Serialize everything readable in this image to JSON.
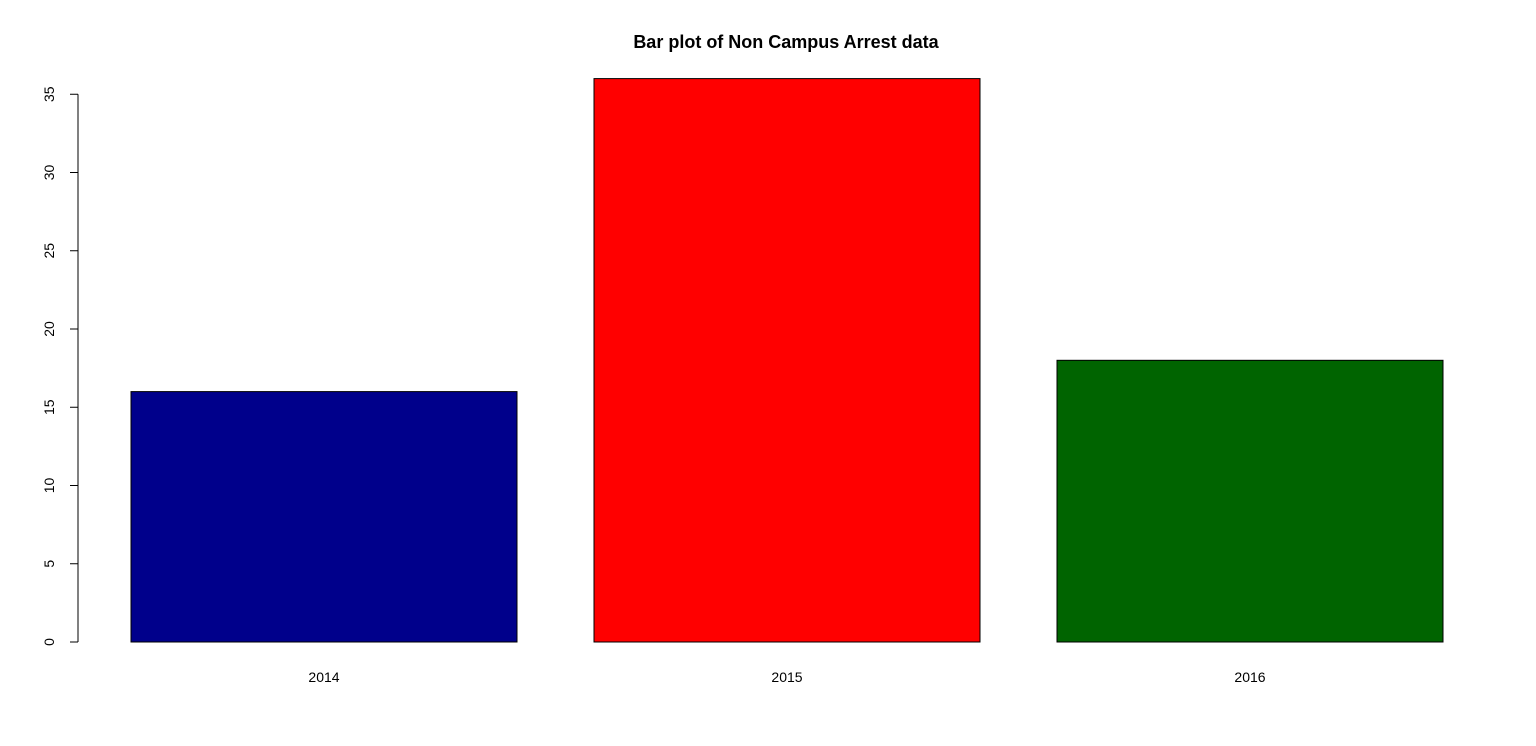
{
  "chart_data": {
    "type": "bar",
    "title": "Bar plot of Non Campus Arrest data",
    "categories": [
      "2014",
      "2015",
      "2016"
    ],
    "values": [
      16,
      36,
      18
    ],
    "colors": [
      "#00008B",
      "#FF0000",
      "#006400"
    ],
    "ylim": [
      0,
      36
    ],
    "yticks": [
      0,
      5,
      10,
      15,
      20,
      25,
      30,
      35
    ],
    "grid": false,
    "legend": "none"
  }
}
